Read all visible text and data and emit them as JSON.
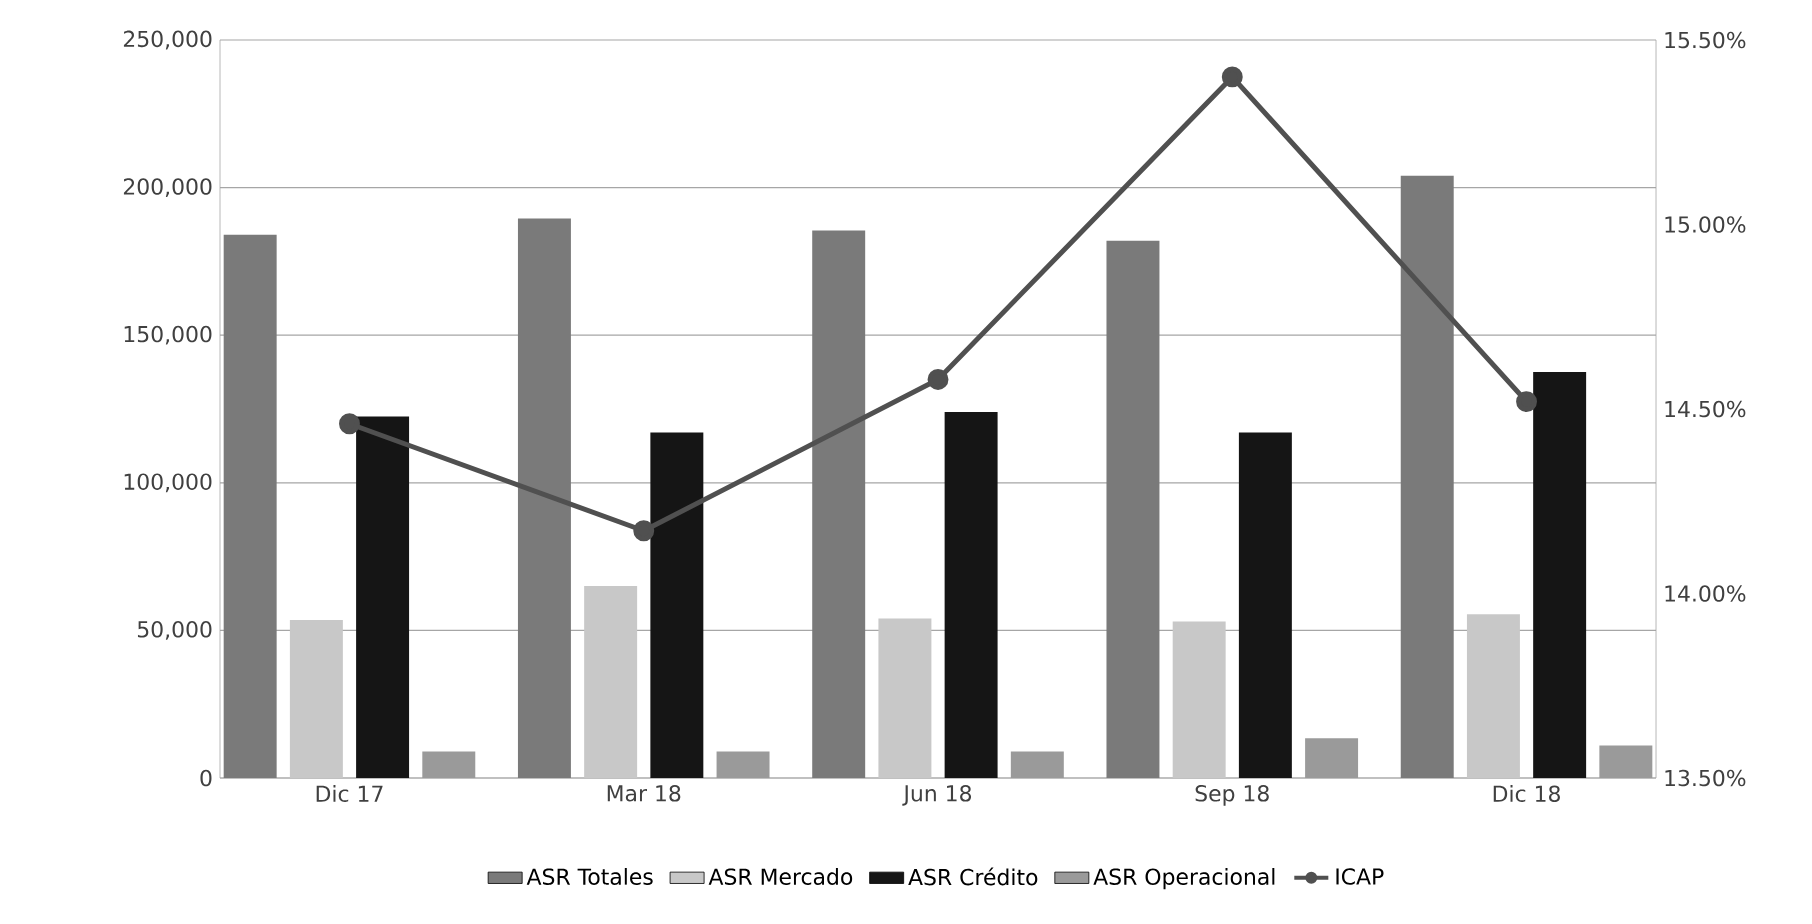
{
  "chart_data": {
    "type": "bar",
    "categories": [
      "Dic 17",
      "Mar 18",
      "Jun 18",
      "Sep 18",
      "Dic 18"
    ],
    "series": [
      {
        "name": "ASR Totales",
        "color": "#7a7a7a",
        "values": [
          184000,
          189500,
          185500,
          182000,
          204000
        ]
      },
      {
        "name": "ASR Mercado",
        "color": "#c8c8c8",
        "values": [
          53500,
          65000,
          54000,
          53000,
          55500
        ]
      },
      {
        "name": "ASR Crédito",
        "color": "#151515",
        "values": [
          122500,
          117000,
          124000,
          117000,
          137500
        ]
      },
      {
        "name": "ASR Operacional",
        "color": "#9a9a9a",
        "values": [
          9000,
          9000,
          9000,
          13500,
          11000
        ]
      },
      {
        "name": "ICAP",
        "type": "line",
        "axis": "y2",
        "color": "#505050",
        "marker": "circle",
        "line_style": "solid",
        "values": [
          14.46,
          14.17,
          14.58,
          15.4,
          14.52
        ]
      }
    ],
    "ylim": [
      0,
      250000
    ],
    "yticks": [
      {
        "value": 0,
        "label": "0"
      },
      {
        "value": 50000,
        "label": "50,000"
      },
      {
        "value": 100000,
        "label": "100,000"
      },
      {
        "value": 150000,
        "label": "150,000"
      },
      {
        "value": 200000,
        "label": "200,000"
      },
      {
        "value": 250000,
        "label": "250,000"
      }
    ],
    "y2lim": [
      13.5,
      15.5
    ],
    "y2ticks": [
      {
        "value": 13.5,
        "label": "13.50%"
      },
      {
        "value": 14.0,
        "label": "14.00%"
      },
      {
        "value": 14.5,
        "label": "14.50%"
      },
      {
        "value": 15.0,
        "label": "15.00%"
      },
      {
        "value": 15.5,
        "label": "15.50%"
      }
    ],
    "grid": "y",
    "legend": "bottom"
  }
}
